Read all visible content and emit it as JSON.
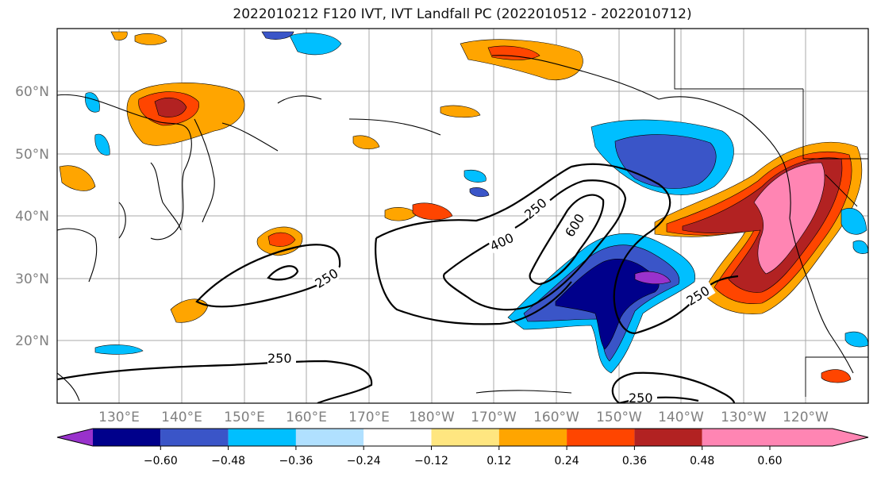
{
  "title": "2022010212 F120 IVT, IVT Landfall PC (2022010512 - 2022010712)",
  "lat_labels": [
    "60°N",
    "50°N",
    "40°N",
    "30°N",
    "20°N"
  ],
  "lon_labels": [
    "130°E",
    "140°E",
    "150°E",
    "160°E",
    "170°E",
    "180°W",
    "170°W",
    "160°W",
    "150°W",
    "140°W",
    "130°W",
    "120°W"
  ],
  "contour_labels": [
    "250",
    "250",
    "250",
    "250",
    "250",
    "400",
    "600"
  ],
  "colorbar": {
    "colors": [
      "#9932cc",
      "#00008b",
      "#3a55c8",
      "#00bfff",
      "#b0e0ff",
      "#ffffff",
      "#ffe680",
      "#ffa500",
      "#ff4500",
      "#b22222",
      "#ff85b3"
    ],
    "tick_labels": [
      "−0.60",
      "−0.48",
      "−0.36",
      "−0.24",
      "−0.12",
      "0.12",
      "0.24",
      "0.36",
      "0.48",
      "0.60"
    ]
  }
}
